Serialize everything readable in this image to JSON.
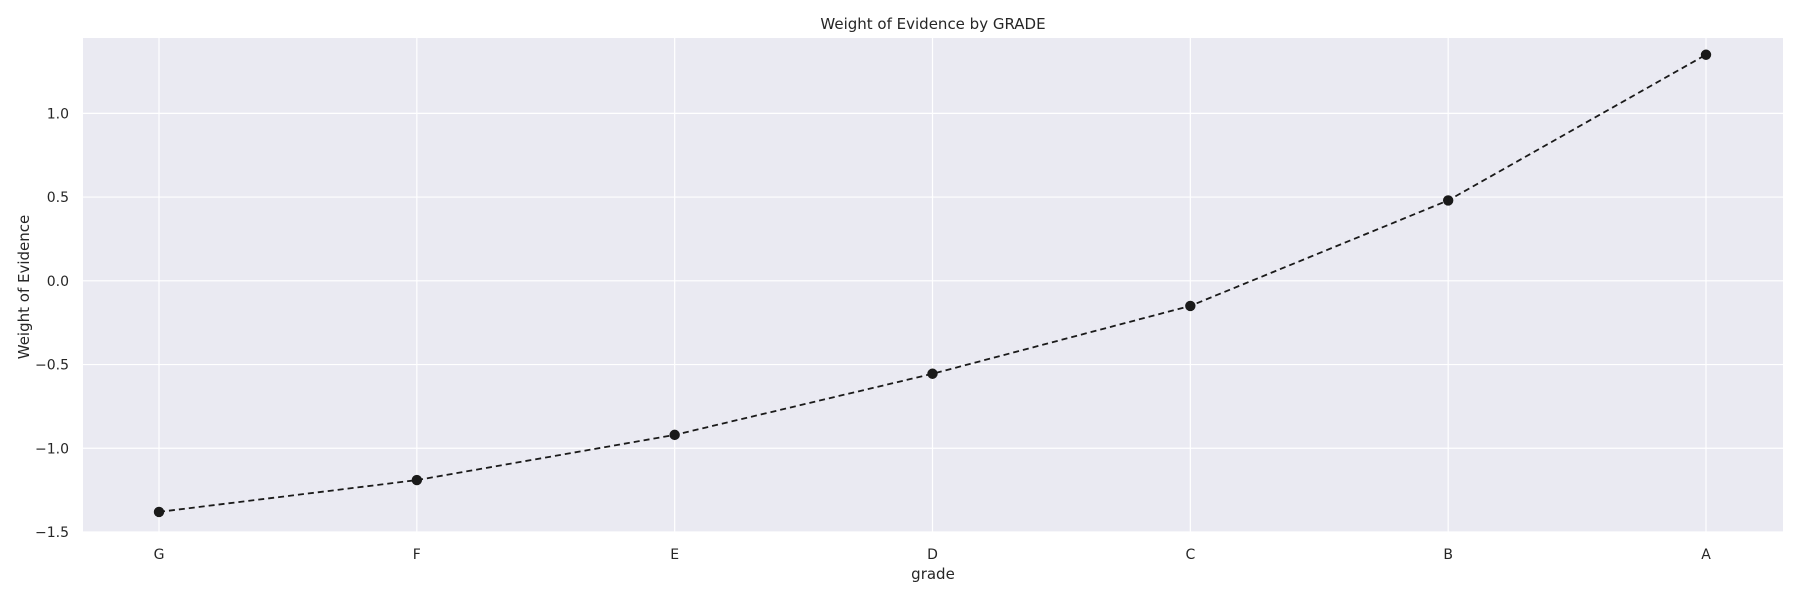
{
  "chart_data": {
    "type": "line",
    "title": "Weight of Evidence by GRADE",
    "xlabel": "grade",
    "ylabel": "Weight of Evidence",
    "categories": [
      "G",
      "F",
      "E",
      "D",
      "C",
      "B",
      "A"
    ],
    "series": [
      {
        "values": [
          -1.38,
          -1.19,
          -0.92,
          -0.555,
          -0.15,
          0.48,
          1.35
        ]
      }
    ],
    "ylim": [
      -1.5,
      1.5
    ],
    "yticks": [
      -1.5,
      -1.0,
      -0.5,
      0.0,
      0.5,
      1.0
    ],
    "ytick_labels": [
      "−1.5",
      "−1.0",
      "−0.5",
      "0.0",
      "0.5",
      "1.0"
    ],
    "grid": true,
    "line_style": "dashed",
    "marker": "circle",
    "colors": {
      "plot_background": "#eaeaf2",
      "grid": "#ffffff",
      "line": "#1a1a1a",
      "text": "#262626"
    }
  }
}
